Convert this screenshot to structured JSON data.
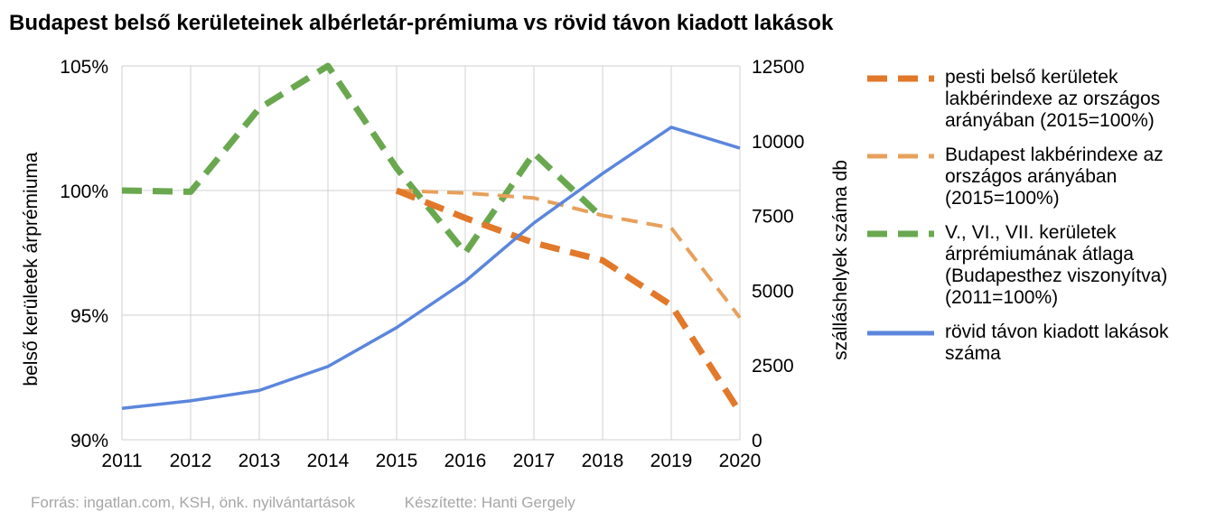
{
  "chart_data": {
    "type": "line",
    "title": "Budapest belső kerületeinek albérletár-prémiuma vs rövid távon kiadott lakások",
    "x": [
      "2011",
      "2012",
      "2013",
      "2014",
      "2015",
      "2016",
      "2017",
      "2018",
      "2019",
      "2020"
    ],
    "y_left_label": "belső kerületek árprémiuma",
    "y_right_label": "szálláshelyek száma db",
    "y_left_lim": [
      0.9,
      1.05
    ],
    "y_right_lim": [
      0,
      12500
    ],
    "y_left_ticks": [
      "90%",
      "95%",
      "100%",
      "105%"
    ],
    "y_right_ticks": [
      "0",
      "2500",
      "5000",
      "7500",
      "10000",
      "12500"
    ],
    "grid": true,
    "legend_position": "right",
    "series": [
      {
        "name": "pesti belső kerületek lakbérindexe az országos arányában (2015=100%)",
        "axis": "left",
        "style": "dashed-thick",
        "color": "#e2782a",
        "values": [
          null,
          null,
          null,
          null,
          1.0,
          0.989,
          0.979,
          0.972,
          0.954,
          0.911
        ]
      },
      {
        "name": "Budapest lakbérindexe az országos arányában (2015=100%)",
        "axis": "left",
        "style": "dashed-thin",
        "color": "#e7a05c",
        "values": [
          null,
          null,
          null,
          null,
          1.0,
          0.999,
          0.997,
          0.99,
          0.985,
          0.949
        ]
      },
      {
        "name": "V., VI., VII. kerületek árprémiumának átlaga (Budapesthez viszonyítva) (2011=100%)",
        "axis": "left",
        "style": "dashed-thick",
        "color": "#6aa84f",
        "values": [
          1.0,
          0.9995,
          1.033,
          1.05,
          1.009,
          0.975,
          1.015,
          0.989,
          null,
          null
        ]
      },
      {
        "name": "rövid távon kiadott lakások száma",
        "axis": "right",
        "style": "solid",
        "color": "#5b86dc",
        "values": [
          1050,
          1300,
          1650,
          2450,
          3750,
          5300,
          7250,
          8900,
          10450,
          9750
        ]
      }
    ]
  },
  "footer": {
    "source": "Forrás: ingatlan.com, KSH, önk. nyilvántartások",
    "author": "Készítette: Hanti Gergely"
  }
}
